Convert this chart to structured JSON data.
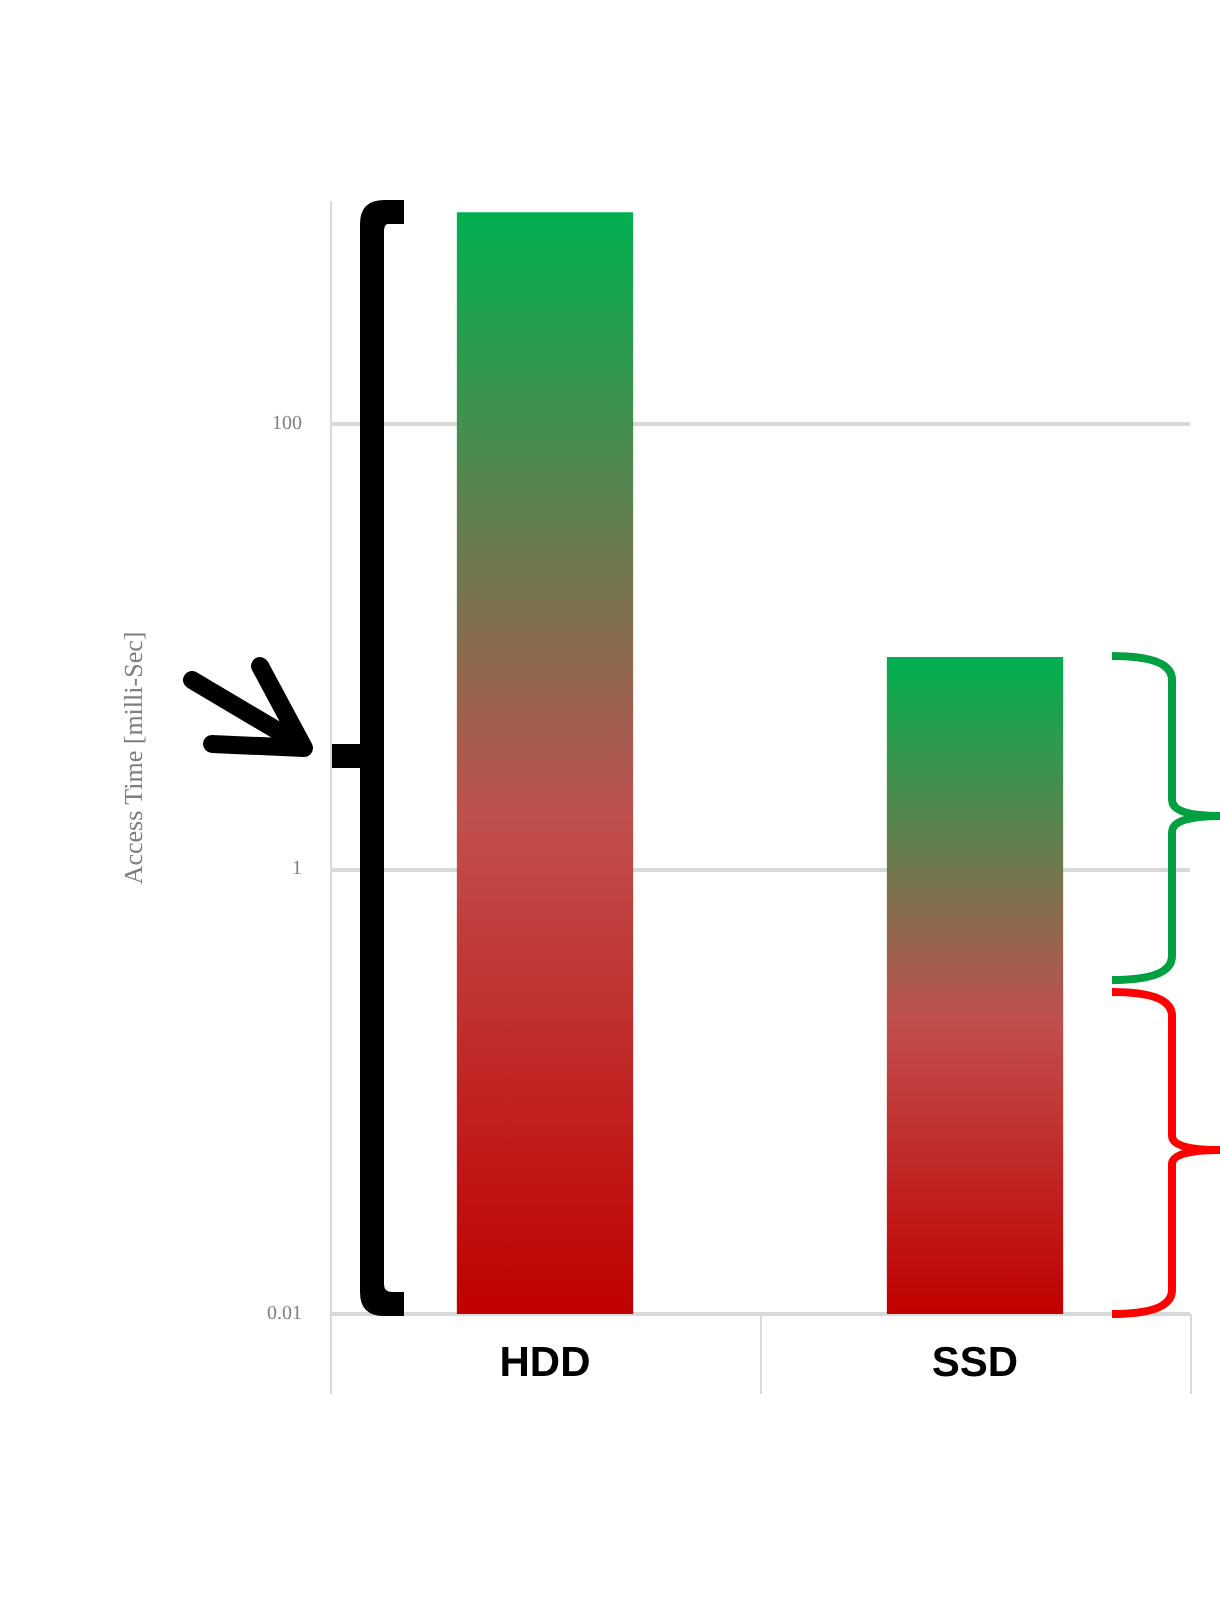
{
  "chart_data": {
    "type": "bar",
    "ylabel": "Access Time [milli-Sec]",
    "categories": [
      "HDD",
      "SSD"
    ],
    "series": [
      {
        "color": "#00b050",
        "values": [
          900,
          9
        ]
      }
    ],
    "log": "y",
    "ylim": [
      0.01,
      1000
    ],
    "yticks": [
      0.01,
      1,
      100
    ],
    "grid": "y"
  }
}
